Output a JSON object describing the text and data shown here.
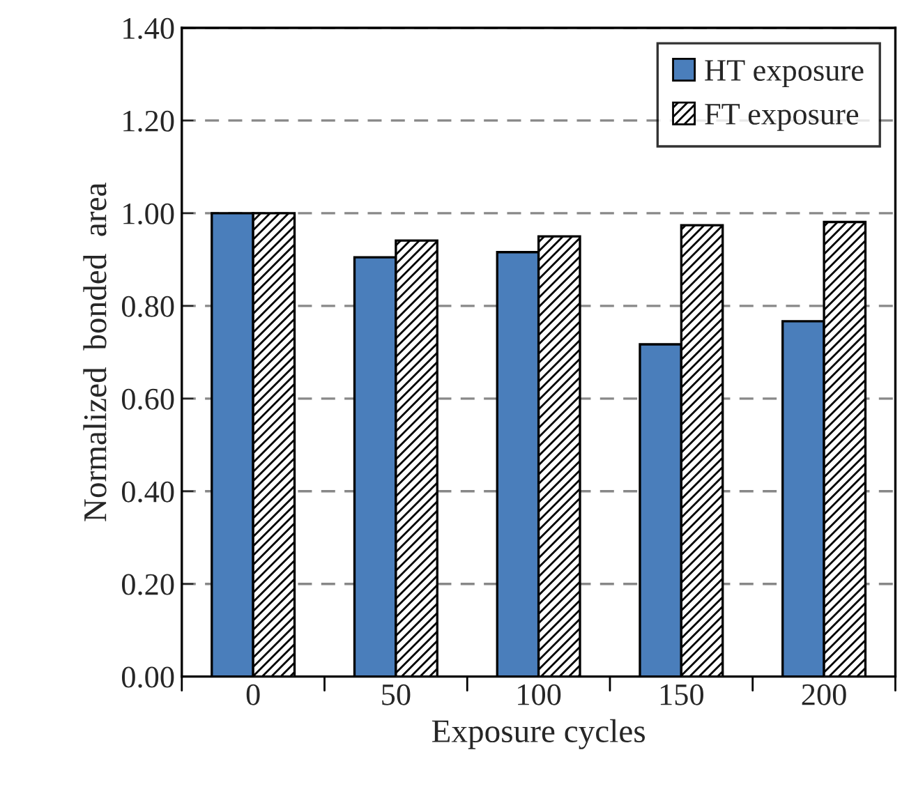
{
  "chart_data": {
    "type": "bar",
    "xlabel": "Exposure cycles",
    "ylabel": "Normalized  bonded  area",
    "categories": [
      "0",
      "50",
      "100",
      "150",
      "200"
    ],
    "series": [
      {
        "name": "HT exposure",
        "color": "#4a7ebb",
        "values": [
          1.0,
          0.905,
          0.916,
          0.717,
          0.767
        ]
      },
      {
        "name": "FT exposure",
        "color": "#000000",
        "values": [
          1.0,
          0.941,
          0.95,
          0.974,
          0.981
        ]
      }
    ],
    "ylim": [
      0,
      1.4
    ],
    "yticks": [
      {
        "value": 0,
        "label": "0.00"
      },
      {
        "value": 0.2,
        "label": "0.20"
      },
      {
        "value": 0.4,
        "label": "0.40"
      },
      {
        "value": 0.6,
        "label": "0.60"
      },
      {
        "value": 0.8,
        "label": "0.80"
      },
      {
        "value": 1.0,
        "label": "1.00"
      },
      {
        "value": 1.2,
        "label": "1.20"
      },
      {
        "value": 1.4,
        "label": "1.40"
      }
    ],
    "grid": "y",
    "legend": "top right"
  }
}
